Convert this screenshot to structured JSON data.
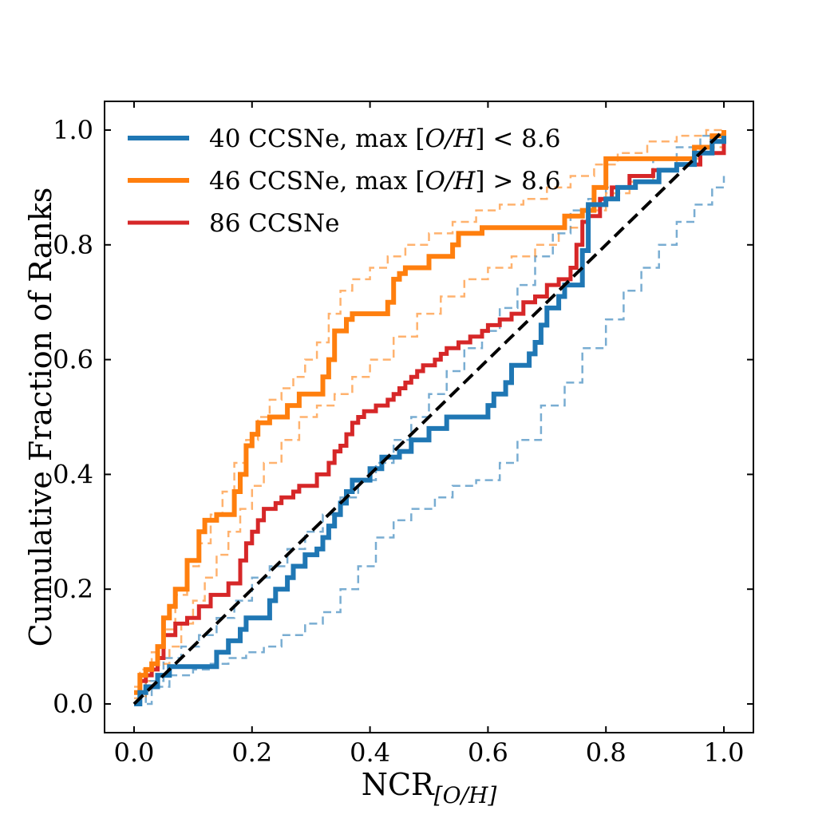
{
  "chart_data": {
    "type": "line",
    "xlabel": "NCR",
    "xlabel_sub": "[O/H]",
    "ylabel": "Cumulative Fraction of Ranks",
    "xlim": [
      -0.05,
      1.05
    ],
    "ylim": [
      -0.05,
      1.05
    ],
    "xticks": [
      0.0,
      0.2,
      0.4,
      0.6,
      0.8,
      1.0
    ],
    "yticks": [
      0.0,
      0.2,
      0.4,
      0.6,
      0.8,
      1.0
    ],
    "xtick_labels": [
      "0.0",
      "0.2",
      "0.4",
      "0.6",
      "0.8",
      "1.0"
    ],
    "ytick_labels": [
      "0.0",
      "0.2",
      "0.4",
      "0.6",
      "0.8",
      "1.0"
    ],
    "grid": false,
    "legend_position": "top-left",
    "colors": {
      "low": "#1f77b4",
      "high": "#ff7f0e",
      "all": "#d62728",
      "reference": "#000000"
    },
    "series": [
      {
        "name": "40 CCSNe, max [O/H] < 8.6",
        "legend_parts": [
          "40 CCSNe, max ",
          "[",
          "O/H",
          "] < 8.6"
        ],
        "key": "low",
        "style": "solid",
        "width": 6,
        "x": [
          0.0,
          0.01,
          0.02,
          0.04,
          0.06,
          0.14,
          0.16,
          0.18,
          0.19,
          0.23,
          0.24,
          0.26,
          0.27,
          0.29,
          0.31,
          0.32,
          0.33,
          0.34,
          0.35,
          0.36,
          0.37,
          0.4,
          0.42,
          0.45,
          0.47,
          0.5,
          0.53,
          0.6,
          0.61,
          0.63,
          0.64,
          0.67,
          0.68,
          0.69,
          0.7,
          0.72,
          0.73,
          0.76,
          0.77,
          0.8,
          0.82,
          0.85,
          0.89,
          0.92,
          0.95,
          0.98,
          1.0
        ],
        "y": [
          0.0,
          0.02,
          0.03,
          0.05,
          0.065,
          0.09,
          0.11,
          0.13,
          0.15,
          0.18,
          0.2,
          0.22,
          0.24,
          0.26,
          0.27,
          0.29,
          0.31,
          0.33,
          0.35,
          0.37,
          0.39,
          0.41,
          0.43,
          0.44,
          0.46,
          0.48,
          0.5,
          0.52,
          0.54,
          0.56,
          0.59,
          0.61,
          0.63,
          0.66,
          0.69,
          0.71,
          0.73,
          0.79,
          0.87,
          0.88,
          0.9,
          0.91,
          0.93,
          0.94,
          0.96,
          0.98,
          0.99
        ]
      },
      {
        "name": "46 CCSNe, max [O/H] > 8.6",
        "legend_parts": [
          "46 CCSNe, max ",
          "[",
          "O/H",
          "] > 8.6"
        ],
        "key": "high",
        "style": "solid",
        "width": 6,
        "x": [
          0.0,
          0.01,
          0.02,
          0.03,
          0.04,
          0.05,
          0.06,
          0.07,
          0.09,
          0.11,
          0.12,
          0.14,
          0.17,
          0.18,
          0.19,
          0.2,
          0.21,
          0.23,
          0.26,
          0.28,
          0.32,
          0.33,
          0.34,
          0.36,
          0.37,
          0.43,
          0.44,
          0.45,
          0.46,
          0.5,
          0.54,
          0.55,
          0.59,
          0.65,
          0.7,
          0.73,
          0.76,
          0.78,
          0.8,
          0.86,
          0.92,
          0.95,
          0.98,
          1.0
        ],
        "y": [
          0.02,
          0.05,
          0.06,
          0.07,
          0.1,
          0.15,
          0.17,
          0.2,
          0.25,
          0.3,
          0.32,
          0.33,
          0.37,
          0.4,
          0.45,
          0.47,
          0.49,
          0.5,
          0.52,
          0.54,
          0.57,
          0.6,
          0.65,
          0.67,
          0.68,
          0.7,
          0.74,
          0.75,
          0.76,
          0.78,
          0.8,
          0.82,
          0.83,
          0.83,
          0.83,
          0.85,
          0.86,
          0.9,
          0.95,
          0.95,
          0.95,
          0.97,
          0.99,
          1.0
        ]
      },
      {
        "name": "86 CCSNe",
        "legend_parts": [
          "86 CCSNe"
        ],
        "key": "all",
        "style": "solid",
        "width": 5,
        "x": [
          0.0,
          0.01,
          0.02,
          0.03,
          0.04,
          0.05,
          0.07,
          0.09,
          0.11,
          0.13,
          0.16,
          0.18,
          0.19,
          0.2,
          0.21,
          0.22,
          0.24,
          0.25,
          0.27,
          0.28,
          0.31,
          0.33,
          0.34,
          0.35,
          0.36,
          0.37,
          0.38,
          0.39,
          0.41,
          0.43,
          0.44,
          0.45,
          0.46,
          0.47,
          0.48,
          0.49,
          0.51,
          0.52,
          0.53,
          0.55,
          0.57,
          0.59,
          0.6,
          0.62,
          0.64,
          0.66,
          0.68,
          0.7,
          0.72,
          0.74,
          0.75,
          0.76,
          0.77,
          0.79,
          0.81,
          0.84,
          0.88,
          0.92,
          0.96,
          1.0
        ],
        "y": [
          0.02,
          0.04,
          0.05,
          0.06,
          0.08,
          0.12,
          0.14,
          0.15,
          0.17,
          0.19,
          0.21,
          0.25,
          0.28,
          0.3,
          0.32,
          0.34,
          0.35,
          0.36,
          0.37,
          0.38,
          0.4,
          0.42,
          0.44,
          0.45,
          0.47,
          0.49,
          0.5,
          0.51,
          0.52,
          0.53,
          0.54,
          0.55,
          0.56,
          0.57,
          0.58,
          0.59,
          0.6,
          0.61,
          0.62,
          0.63,
          0.64,
          0.65,
          0.66,
          0.67,
          0.68,
          0.7,
          0.71,
          0.73,
          0.74,
          0.76,
          0.8,
          0.84,
          0.85,
          0.88,
          0.9,
          0.92,
          0.93,
          0.94,
          0.96,
          0.98
        ]
      },
      {
        "key": "low",
        "style": "dashed",
        "width": 2.5,
        "opacity": 0.6,
        "x": [
          0.0,
          0.03,
          0.06,
          0.1,
          0.13,
          0.16,
          0.19,
          0.22,
          0.25,
          0.29,
          0.32,
          0.35,
          0.38,
          0.41,
          0.44,
          0.47,
          0.51,
          0.54,
          0.58,
          0.62,
          0.65,
          0.69,
          0.73,
          0.76,
          0.8,
          0.83,
          0.86,
          0.89,
          0.92,
          0.95,
          0.98,
          1.0
        ],
        "y": [
          0.0,
          0.03,
          0.05,
          0.06,
          0.07,
          0.08,
          0.09,
          0.1,
          0.12,
          0.14,
          0.16,
          0.2,
          0.24,
          0.29,
          0.32,
          0.34,
          0.36,
          0.38,
          0.39,
          0.42,
          0.46,
          0.52,
          0.56,
          0.62,
          0.67,
          0.72,
          0.76,
          0.8,
          0.84,
          0.87,
          0.9,
          0.92
        ]
      },
      {
        "key": "low",
        "style": "dashed",
        "width": 2.5,
        "opacity": 0.6,
        "x": [
          0.0,
          0.02,
          0.05,
          0.08,
          0.11,
          0.14,
          0.17,
          0.2,
          0.23,
          0.26,
          0.29,
          0.32,
          0.35,
          0.38,
          0.41,
          0.44,
          0.47,
          0.5,
          0.53,
          0.56,
          0.59,
          0.62,
          0.65,
          0.68,
          0.71,
          0.74,
          0.77,
          0.8,
          0.84,
          0.88,
          0.92,
          0.96,
          1.0
        ],
        "y": [
          0.0,
          0.04,
          0.08,
          0.1,
          0.12,
          0.15,
          0.18,
          0.22,
          0.24,
          0.27,
          0.3,
          0.33,
          0.36,
          0.39,
          0.42,
          0.46,
          0.5,
          0.54,
          0.58,
          0.62,
          0.65,
          0.69,
          0.73,
          0.78,
          0.82,
          0.86,
          0.88,
          0.9,
          0.92,
          0.95,
          0.97,
          0.99,
          1.0
        ]
      },
      {
        "key": "high",
        "style": "dashed",
        "width": 2.5,
        "opacity": 0.6,
        "x": [
          0.0,
          0.01,
          0.03,
          0.05,
          0.07,
          0.09,
          0.11,
          0.13,
          0.15,
          0.17,
          0.19,
          0.21,
          0.23,
          0.25,
          0.27,
          0.29,
          0.31,
          0.33,
          0.35,
          0.37,
          0.4,
          0.43,
          0.46,
          0.5,
          0.54,
          0.58,
          0.62,
          0.66,
          0.7,
          0.74,
          0.78,
          0.82,
          0.87,
          0.92,
          0.97,
          1.0
        ],
        "y": [
          0.03,
          0.06,
          0.09,
          0.13,
          0.19,
          0.24,
          0.28,
          0.33,
          0.37,
          0.42,
          0.46,
          0.5,
          0.53,
          0.55,
          0.57,
          0.6,
          0.63,
          0.68,
          0.72,
          0.74,
          0.76,
          0.78,
          0.8,
          0.82,
          0.84,
          0.86,
          0.87,
          0.88,
          0.9,
          0.92,
          0.94,
          0.96,
          0.98,
          0.99,
          1.0,
          1.0
        ]
      },
      {
        "key": "high",
        "style": "dashed",
        "width": 2.5,
        "opacity": 0.6,
        "x": [
          0.0,
          0.02,
          0.04,
          0.06,
          0.08,
          0.1,
          0.12,
          0.14,
          0.16,
          0.18,
          0.2,
          0.22,
          0.25,
          0.28,
          0.31,
          0.34,
          0.37,
          0.4,
          0.44,
          0.48,
          0.52,
          0.56,
          0.6,
          0.64,
          0.68,
          0.72,
          0.76,
          0.8,
          0.84,
          0.88,
          0.92,
          0.96,
          1.0
        ],
        "y": [
          0.01,
          0.04,
          0.07,
          0.1,
          0.14,
          0.18,
          0.22,
          0.26,
          0.3,
          0.34,
          0.38,
          0.42,
          0.46,
          0.5,
          0.52,
          0.54,
          0.57,
          0.6,
          0.64,
          0.68,
          0.71,
          0.74,
          0.76,
          0.78,
          0.8,
          0.83,
          0.86,
          0.89,
          0.91,
          0.93,
          0.95,
          0.97,
          0.98
        ]
      },
      {
        "key": "reference",
        "style": "dashed",
        "width": 4,
        "x": [
          0.0,
          1.0
        ],
        "y": [
          0.0,
          1.0
        ]
      }
    ]
  }
}
